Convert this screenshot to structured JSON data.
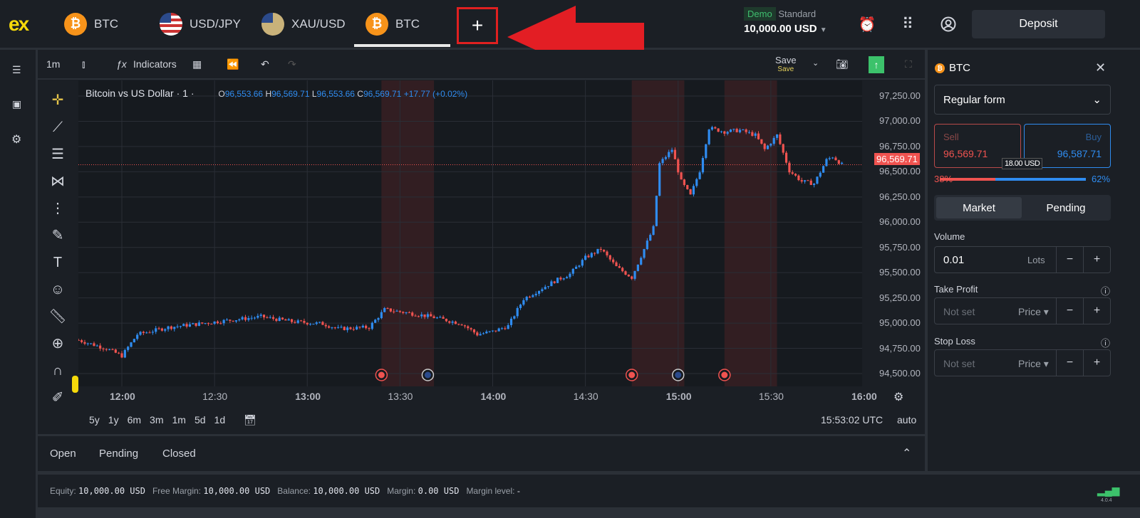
{
  "header": {
    "logo": "ex",
    "tabs": [
      {
        "label": "BTC",
        "icon": "bitcoin-icon"
      },
      {
        "label": "USD/JPY",
        "icon": "us-jp-flags-icon"
      },
      {
        "label": "XAU/USD",
        "icon": "gold-us-flag-icon"
      },
      {
        "label": "BTC",
        "icon": "bitcoin-icon",
        "active": true
      }
    ],
    "add_tab": "+",
    "account_mode": "Demo",
    "account_type": "Standard",
    "balance": "10,000.00 USD",
    "deposit": "Deposit"
  },
  "toolbar": {
    "interval": "1m",
    "indicators": "Indicators",
    "save": "Save",
    "save_sub": "Save"
  },
  "chart": {
    "legend_title": "Bitcoin vs US Dollar · 1 ·",
    "o_label": "O",
    "o": "96,553.66",
    "h_label": "H",
    "h": "96,569.71",
    "l_label": "L",
    "l": "96,553.66",
    "c_label": "C",
    "c": "96,569.71",
    "change": "+17.77 (+0.02%)",
    "current_price": "96,569.71",
    "time": "15:53:02 UTC",
    "scale_mode": "auto",
    "ranges": [
      "5y",
      "1y",
      "6m",
      "3m",
      "1m",
      "5d",
      "1d"
    ]
  },
  "chart_data": {
    "type": "candlestick",
    "interval": "1m",
    "yticks": [
      "97,250.00",
      "97,000.00",
      "96,750.00",
      "96,500.00",
      "96,250.00",
      "96,000.00",
      "95,750.00",
      "95,500.00",
      "95,250.00",
      "95,000.00",
      "94,750.00",
      "94,500.00"
    ],
    "ylim": [
      94500,
      97250
    ],
    "xticks": [
      "12:00",
      "12:30",
      "13:00",
      "13:30",
      "14:00",
      "14:30",
      "15:00",
      "15:30",
      "16:00"
    ],
    "approx_close_path": [
      [
        "11:46",
        94831
      ],
      [
        "11:55",
        94747
      ],
      [
        "12:00",
        94676
      ],
      [
        "12:05",
        94888
      ],
      [
        "12:15",
        94958
      ],
      [
        "12:25",
        94993
      ],
      [
        "12:35",
        95029
      ],
      [
        "12:45",
        95064
      ],
      [
        "12:55",
        95015
      ],
      [
        "13:05",
        94993
      ],
      [
        "13:10",
        94944
      ],
      [
        "13:20",
        94958
      ],
      [
        "13:25",
        95134
      ],
      [
        "13:30",
        95113
      ],
      [
        "13:40",
        95064
      ],
      [
        "13:50",
        94993
      ],
      [
        "13:55",
        94888
      ],
      [
        "14:00",
        94916
      ],
      [
        "14:05",
        94972
      ],
      [
        "14:10",
        95240
      ],
      [
        "14:20",
        95416
      ],
      [
        "14:25",
        95487
      ],
      [
        "14:30",
        95649
      ],
      [
        "14:35",
        95734
      ],
      [
        "14:40",
        95557
      ],
      [
        "14:45",
        95452
      ],
      [
        "14:50",
        95804
      ],
      [
        "14:52",
        95945
      ],
      [
        "14:54",
        96580
      ],
      [
        "14:58",
        96721
      ],
      [
        "15:01",
        96404
      ],
      [
        "15:04",
        96263
      ],
      [
        "15:07",
        96510
      ],
      [
        "15:10",
        96933
      ],
      [
        "15:15",
        96897
      ],
      [
        "15:20",
        96912
      ],
      [
        "15:25",
        96862
      ],
      [
        "15:28",
        96721
      ],
      [
        "15:32",
        96862
      ],
      [
        "15:36",
        96510
      ],
      [
        "15:40",
        96404
      ],
      [
        "15:44",
        96383
      ],
      [
        "15:48",
        96615
      ],
      [
        "15:50",
        96651
      ],
      [
        "15:53",
        96570
      ]
    ],
    "session_highlights": [
      [
        "13:24",
        "13:41"
      ],
      [
        "14:45",
        "15:02"
      ],
      [
        "15:15",
        "15:32"
      ]
    ],
    "up_color": "#2f8cf0",
    "down_color": "#ef5350"
  },
  "order": {
    "symbol": "BTC",
    "form": "Regular form",
    "sell_label": "Sell",
    "sell": "96,569.71",
    "buy_label": "Buy",
    "buy": "96,587.71",
    "spread": "18.00 USD",
    "sell_pct": "38%",
    "buy_pct": "62%",
    "sell_fraction": 0.38,
    "market": "Market",
    "pending": "Pending",
    "volume_label": "Volume",
    "volume": "0.01",
    "lots": "Lots",
    "tp_label": "Take Profit",
    "sl_label": "Stop Loss",
    "not_set": "Not set",
    "price": "Price"
  },
  "positions": {
    "tabs": [
      "Open",
      "Pending",
      "Closed"
    ]
  },
  "status": {
    "equity_l": "Equity:",
    "equity": "10,000.00 USD",
    "free_l": "Free Margin:",
    "free": "10,000.00 USD",
    "bal_l": "Balance:",
    "bal": "10,000.00 USD",
    "margin_l": "Margin:",
    "margin": "0.00 USD",
    "level_l": "Margin level:",
    "level": "-",
    "version": "4.0.4"
  }
}
